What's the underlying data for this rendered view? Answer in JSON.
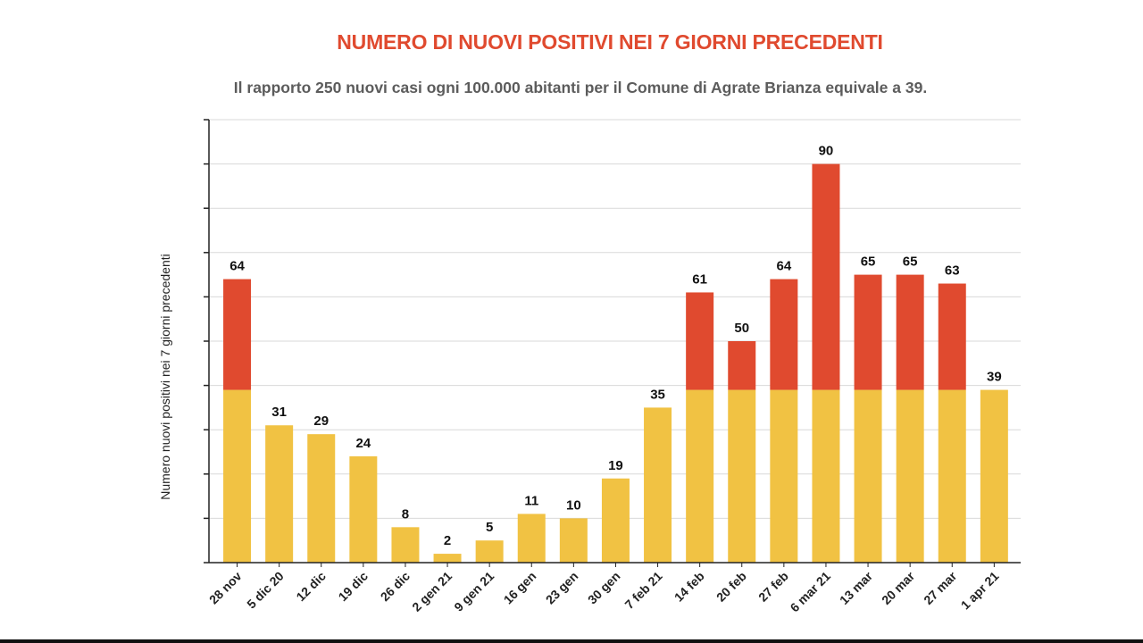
{
  "colors": {
    "title": "#e04a2f",
    "subtitle": "#5c5c5c",
    "below_threshold": "#f1c243",
    "above_threshold": "#e04a2f",
    "grid": "#d9d9d9",
    "axis": "#222222"
  },
  "chart_data": {
    "type": "bar",
    "title": "NUMERO DI NUOVI POSITIVI NEI 7 GIORNI PRECEDENTI",
    "subtitle": "Il rapporto 250 nuovi casi ogni 100.000 abitanti per il Comune di Agrate Brianza equivale a 39.",
    "xlabel": "",
    "ylabel": "Numero  nuovi positivi nei 7 giorni precedenti",
    "ylim": [
      0,
      100
    ],
    "y_tick_step": 10,
    "y_tick_labels_shown": false,
    "threshold": 39,
    "threshold_description": "values up to 39 drawn in yellow, portion above 39 drawn in red",
    "grid": true,
    "categories": [
      "28 nov",
      "5 dic 20",
      "12 dic",
      "19 dic",
      "26 dic",
      "2 gen 21",
      "9 gen 21",
      "16 gen",
      "23 gen",
      "30 gen",
      "7 feb 21",
      "14 feb",
      "20 feb",
      "27 feb",
      "6 mar 21",
      "13 mar",
      "20 mar",
      "27 mar",
      "1 apr 21"
    ],
    "values": [
      64,
      31,
      29,
      24,
      8,
      2,
      5,
      11,
      10,
      19,
      35,
      61,
      50,
      64,
      90,
      65,
      65,
      63,
      39
    ]
  }
}
